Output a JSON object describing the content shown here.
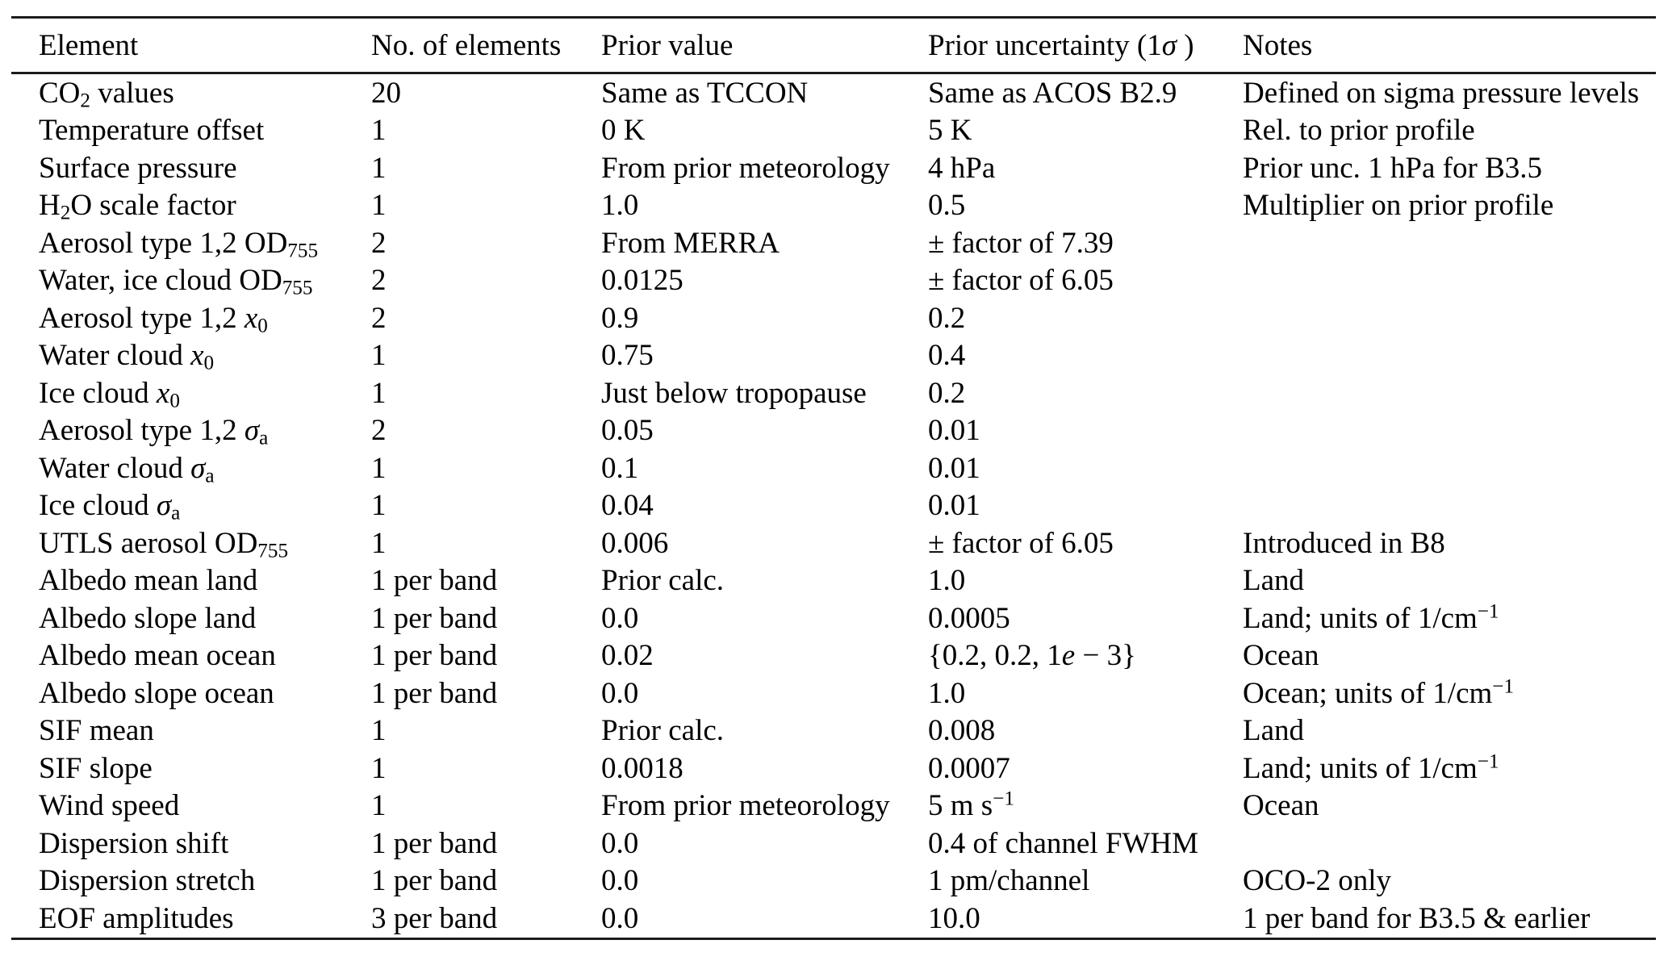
{
  "table": {
    "columns": [
      "Element",
      "No. of elements",
      "Prior value",
      "Prior uncertainty (1*σ* )",
      "Notes"
    ],
    "rows": [
      [
        "CO_{2} values",
        "20",
        "Same as TCCON",
        "Same as ACOS B2.9",
        "Defined on sigma pressure levels"
      ],
      [
        "Temperature offset",
        "1",
        "0 K",
        "5 K",
        "Rel. to prior profile"
      ],
      [
        "Surface pressure",
        "1",
        "From prior meteorology",
        "4 hPa",
        "Prior unc. 1 hPa for B3.5"
      ],
      [
        "H_{2}O scale factor",
        "1",
        "1.0",
        "0.5",
        "Multiplier on prior profile"
      ],
      [
        "Aerosol type 1,2 OD_{755}",
        "2",
        "From MERRA",
        "± factor of 7.39",
        ""
      ],
      [
        "Water, ice cloud OD_{755}",
        "2",
        "0.0125",
        "± factor of 6.05",
        ""
      ],
      [
        "Aerosol type 1,2 *x*_{0}",
        "2",
        "0.9",
        "0.2",
        ""
      ],
      [
        "Water cloud *x*_{0}",
        "1",
        "0.75",
        "0.4",
        ""
      ],
      [
        "Ice cloud *x*_{0}",
        "1",
        "Just below tropopause",
        "0.2",
        ""
      ],
      [
        "Aerosol type 1,2 *σ*_{a}",
        "2",
        "0.05",
        "0.01",
        ""
      ],
      [
        "Water cloud *σ*_{a}",
        "1",
        "0.1",
        "0.01",
        ""
      ],
      [
        "Ice cloud *σ*_{a}",
        "1",
        "0.04",
        "0.01",
        ""
      ],
      [
        "UTLS aerosol OD_{755}",
        "1",
        "0.006",
        "± factor of 6.05",
        "Introduced in B8"
      ],
      [
        "Albedo mean land",
        "1 per band",
        "Prior calc.",
        "1.0",
        "Land"
      ],
      [
        "Albedo slope land",
        "1 per band",
        "0.0",
        "0.0005",
        "Land; units of 1/cm^{−1}"
      ],
      [
        "Albedo mean ocean",
        "1 per band",
        "0.02",
        "{0.2, 0.2, 1*e* − 3}",
        "Ocean"
      ],
      [
        "Albedo slope ocean",
        "1 per band",
        "0.0",
        "1.0",
        "Ocean; units of 1/cm^{−1}"
      ],
      [
        "SIF mean",
        "1",
        "Prior calc.",
        "0.008",
        "Land"
      ],
      [
        "SIF slope",
        "1",
        "0.0018",
        "0.0007",
        "Land; units of 1/cm^{−1}"
      ],
      [
        "Wind speed",
        "1",
        "From prior meteorology",
        "5 m s^{−1}",
        "Ocean"
      ],
      [
        "Dispersion shift",
        "1 per band",
        "0.0",
        "0.4 of channel FWHM",
        ""
      ],
      [
        "Dispersion stretch",
        "1 per band",
        "0.0",
        "1 pm/channel",
        "OCO-2 only"
      ],
      [
        "EOF amplitudes",
        "3 per band",
        "0.0",
        "10.0",
        "1 per band for B3.5 & earlier"
      ]
    ]
  },
  "colors": {
    "rule": "#1c1c1c",
    "text": "#000000",
    "background": "#ffffff"
  }
}
